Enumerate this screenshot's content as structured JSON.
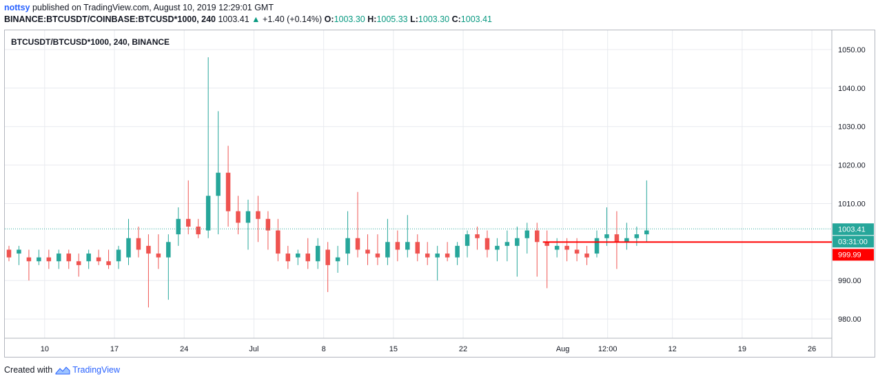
{
  "header": {
    "author": "nottsy",
    "published_text": "published on TradingView.com, August 10, 2019 12:29:01 GMT",
    "symbol": "BINANCE:BTCUSDT/COINBASE:BTCUSD*1000, 240",
    "last": "1003.41",
    "change_arrow": "▲",
    "change": "+1.40 (+0.14%)",
    "o_label": "O:",
    "o_value": "1003.30",
    "h_label": "H:",
    "h_value": "1005.33",
    "l_label": "L:",
    "l_value": "1003.30",
    "c_label": "C:",
    "c_value": "1003.41"
  },
  "footer": {
    "created_with": "Created with",
    "brand": "TradingView"
  },
  "colors": {
    "up": "#26a69a",
    "down": "#ef5350",
    "grid": "#e8eaef",
    "hline": "#ff0000",
    "price_label": "#26a69a",
    "countdown_label": "#26a69a",
    "hline_label": "#ff0000"
  },
  "chart_data": {
    "type": "candlestick",
    "title": "BTCUSDT/BTCUSD*1000, 240, BINANCE",
    "interval": "240",
    "y_ticks": [
      1050,
      1040,
      1030,
      1020,
      1010,
      990,
      980
    ],
    "y_tick_labels": [
      "1050.00",
      "1040.00",
      "1030.00",
      "1020.00",
      "1010.00",
      "990.00",
      "980.00"
    ],
    "ylim": [
      975,
      1055
    ],
    "x_ticks": [
      {
        "label": "10",
        "date": "2019-06-10"
      },
      {
        "label": "17",
        "date": "2019-06-17"
      },
      {
        "label": "24",
        "date": "2019-06-24"
      },
      {
        "label": "Jul",
        "date": "2019-07-01"
      },
      {
        "label": "8",
        "date": "2019-07-08"
      },
      {
        "label": "15",
        "date": "2019-07-15"
      },
      {
        "label": "22",
        "date": "2019-07-22"
      },
      {
        "label": "Aug",
        "date": "2019-08-01"
      },
      {
        "label": "12:00",
        "date": "2019-08-05T12:00"
      },
      {
        "label": "12",
        "date": "2019-08-12"
      },
      {
        "label": "19",
        "date": "2019-08-19"
      },
      {
        "label": "26",
        "date": "2019-08-26"
      }
    ],
    "xlim": [
      "2019-06-06",
      "2019-08-28"
    ],
    "last_close": 1003.41,
    "last_close_label": "1003.41",
    "countdown_label": "03:31:00",
    "horizontal_line": {
      "value": 999.99,
      "label": "999.99",
      "from": "2019-07-30"
    },
    "candles": [
      [
        "2019-06-06",
        998,
        999,
        995,
        996
      ],
      [
        "2019-06-07",
        997,
        999,
        994,
        998
      ],
      [
        "2019-06-08",
        996,
        998,
        990,
        995
      ],
      [
        "2019-06-09",
        995,
        998,
        994,
        996
      ],
      [
        "2019-06-10",
        996,
        998,
        993,
        995
      ],
      [
        "2019-06-11",
        995,
        998,
        993,
        997
      ],
      [
        "2019-06-12",
        997,
        998,
        993,
        995
      ],
      [
        "2019-06-13",
        995,
        997,
        991,
        994
      ],
      [
        "2019-06-14",
        995,
        998,
        993,
        997
      ],
      [
        "2019-06-15",
        996,
        998,
        994,
        995
      ],
      [
        "2019-06-16",
        995,
        998,
        993,
        994
      ],
      [
        "2019-06-17",
        995,
        999,
        993,
        998
      ],
      [
        "2019-06-18",
        996,
        1006,
        994,
        1001
      ],
      [
        "2019-06-19",
        1001,
        1004,
        996,
        998
      ],
      [
        "2019-06-20",
        999,
        1002,
        983,
        997
      ],
      [
        "2019-06-21",
        997,
        1002,
        993,
        996
      ],
      [
        "2019-06-22",
        996,
        1002,
        985,
        1000
      ],
      [
        "2019-06-23",
        1002,
        1009,
        999,
        1006
      ],
      [
        "2019-06-24",
        1006,
        1016,
        1002,
        1004
      ],
      [
        "2019-06-25",
        1004,
        1006,
        1001,
        1002
      ],
      [
        "2019-06-26",
        1003,
        1048,
        1001,
        1012
      ],
      [
        "2019-06-27",
        1012,
        1034,
        1002,
        1018
      ],
      [
        "2019-06-28",
        1018,
        1025,
        1004,
        1008
      ],
      [
        "2019-06-29",
        1008,
        1012,
        1002,
        1005
      ],
      [
        "2019-06-30",
        1005,
        1011,
        998,
        1008
      ],
      [
        "2019-07-01",
        1008,
        1012,
        1000,
        1006
      ],
      [
        "2019-07-02",
        1006,
        1008,
        998,
        1003
      ],
      [
        "2019-07-03",
        1003,
        1006,
        995,
        997
      ],
      [
        "2019-07-04",
        997,
        999,
        993,
        995
      ],
      [
        "2019-07-05",
        996,
        998,
        994,
        997
      ],
      [
        "2019-07-06",
        997,
        1001,
        993,
        995
      ],
      [
        "2019-07-07",
        995,
        1001,
        993,
        999
      ],
      [
        "2019-07-08",
        998,
        1000,
        987,
        994
      ],
      [
        "2019-07-09",
        995,
        999,
        992,
        996
      ],
      [
        "2019-07-10",
        997,
        1008,
        994,
        1001
      ],
      [
        "2019-07-11",
        1001,
        1013,
        996,
        998
      ],
      [
        "2019-07-12",
        998,
        1002,
        994,
        997
      ],
      [
        "2019-07-13",
        997,
        1002,
        994,
        996
      ],
      [
        "2019-07-14",
        996,
        1006,
        994,
        1000
      ],
      [
        "2019-07-15",
        1000,
        1003,
        995,
        998
      ],
      [
        "2019-07-16",
        998,
        1007,
        996,
        1000
      ],
      [
        "2019-07-17",
        1000,
        1002,
        995,
        997
      ],
      [
        "2019-07-18",
        997,
        1000,
        994,
        996
      ],
      [
        "2019-07-19",
        996,
        999,
        990,
        997
      ],
      [
        "2019-07-20",
        997,
        1000,
        995,
        996
      ],
      [
        "2019-07-21",
        996,
        1000,
        994,
        999
      ],
      [
        "2019-07-22",
        999,
        1003,
        996,
        1002
      ],
      [
        "2019-07-23",
        1002,
        1004,
        998,
        1001
      ],
      [
        "2019-07-24",
        1001,
        1003,
        996,
        998
      ],
      [
        "2019-07-25",
        998,
        1001,
        995,
        999
      ],
      [
        "2019-07-26",
        999,
        1003,
        995,
        1000
      ],
      [
        "2019-07-27",
        999,
        1004,
        991,
        1001
      ],
      [
        "2019-07-28",
        1001,
        1005,
        997,
        1003
      ],
      [
        "2019-07-29",
        1003,
        1005,
        991,
        1000
      ],
      [
        "2019-07-30",
        1000,
        1003,
        988,
        999
      ],
      [
        "2019-07-31",
        998,
        1001,
        996,
        999
      ],
      [
        "2019-08-01",
        999,
        1001,
        995,
        998
      ],
      [
        "2019-08-02",
        998,
        1001,
        995,
        997
      ],
      [
        "2019-08-03",
        997,
        999,
        994,
        996
      ],
      [
        "2019-08-04",
        997,
        1003,
        996,
        1001
      ],
      [
        "2019-08-05",
        1001,
        1009,
        999,
        1002
      ],
      [
        "2019-08-06",
        1002,
        1008,
        993,
        1000
      ],
      [
        "2019-08-07",
        1000,
        1005,
        998,
        1001
      ],
      [
        "2019-08-08",
        1001,
        1004,
        999,
        1002
      ],
      [
        "2019-08-09",
        1002,
        1016,
        1000,
        1003
      ]
    ]
  }
}
